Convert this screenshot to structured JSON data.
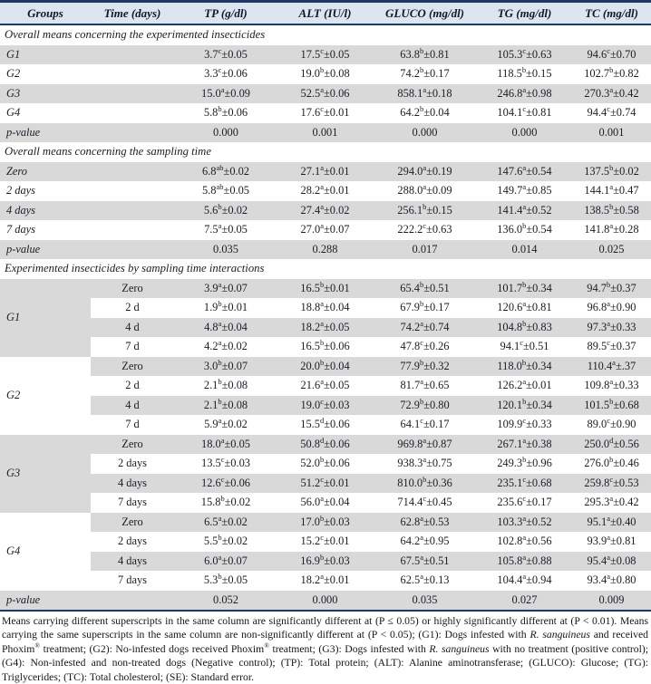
{
  "colors": {
    "border_navy": "#1c3a66",
    "header_bg": "#dde5f0",
    "row_shade": "#d9d9d9",
    "text": "#191d26"
  },
  "table": {
    "columns": [
      "Groups",
      "Time (days)",
      "TP (g/dl)",
      "ALT (IU/l)",
      "GLUCO (mg/dl)",
      "TG (mg/dl)",
      "TC (mg/dl)"
    ],
    "sections": [
      {
        "title": "Overall means concerning the experimented insecticides",
        "rows": [
          {
            "label": "G1",
            "cells": [
              "3.7^{c}±0.05",
              "17.5^{c}±0.05",
              "63.8^{b}±0.81",
              "105.3^{c}±0.63",
              "94.6^{c}±0.70"
            ]
          },
          {
            "label": "G2",
            "cells": [
              "3.3^{c}±0.06",
              "19.0^{b}±0.08",
              "74.2^{b}±0.17",
              "118.5^{b}±0.15",
              "102.7^{b}±0.82"
            ]
          },
          {
            "label": "G3",
            "cells": [
              "15.0^{a}±0.09",
              "52.5^{a}±0.06",
              "858.1^{a}±0.18",
              "246.8^{a}±0.98",
              "270.3^{a}±0.42"
            ]
          },
          {
            "label": "G4",
            "cells": [
              "5.8^{b}±0.06",
              "17.6^{c}±0.01",
              "64.2^{b}±0.04",
              "104.1^{c}±0.81",
              "94.4^{c}±0.74"
            ]
          },
          {
            "label": "p-value",
            "pvalue": true,
            "cells": [
              "0.000",
              "0.001",
              "0.000",
              "0.000",
              "0.001"
            ]
          }
        ]
      },
      {
        "title": "Overall means concerning the sampling time",
        "rows": [
          {
            "label": "Zero",
            "cells": [
              "6.8^{ab}±0.02",
              "27.1^{a}±0.01",
              "294.0^{a}±0.19",
              "147.6^{a}±0.54",
              "137.5^{b}±0.02"
            ]
          },
          {
            "label": "2 days",
            "cells": [
              "5.8^{ab}±0.05",
              "28.2^{a}±0.01",
              "288.0^{a}±0.09",
              "149.7^{a}±0.85",
              "144.1^{a}±0.47"
            ]
          },
          {
            "label": "4 days",
            "cells": [
              "5.6^{b}±0.02",
              "27.4^{a}±0.02",
              "256.1^{b}±0.15",
              "141.4^{a}±0.52",
              "138.5^{b}±0.58"
            ]
          },
          {
            "label": "7 days",
            "cells": [
              "7.5^{a}±0.05",
              "27.0^{a}±0.07",
              "222.2^{c}±0.63",
              "136.0^{b}±0.54",
              "141.8^{a}±0.28"
            ]
          },
          {
            "label": "p-value",
            "pvalue": true,
            "cells": [
              "0.035",
              "0.288",
              "0.017",
              "0.014",
              "0.025"
            ]
          }
        ]
      },
      {
        "title": "Experimented insecticides by sampling time interactions",
        "groups": [
          {
            "label": "G1",
            "rows": [
              {
                "time": "Zero",
                "cells": [
                  "3.9^{a}±0.07",
                  "16.5^{b}±0.01",
                  "65.4^{b}±0.51",
                  "101.7^{b}±0.34",
                  "94.7^{b}±0.37"
                ]
              },
              {
                "time": "2 d",
                "cells": [
                  "1.9^{b}±0.01",
                  "18.8^{a}±0.04",
                  "67.9^{b}±0.17",
                  "120.6^{a}±0.81",
                  "96.8^{a}±0.90"
                ]
              },
              {
                "time": "4 d",
                "cells": [
                  "4.8^{a}±0.04",
                  "18.2^{a}±0.05",
                  "74.2^{a}±0.74",
                  "104.8^{b}±0.83",
                  "97.3^{a}±0.33"
                ]
              },
              {
                "time": "7 d",
                "cells": [
                  "4.2^{a}±0.02",
                  "16.5^{b}±0.06",
                  "47.8^{c}±0.26",
                  "94.1^{c}±0.51",
                  "89.5^{c}±0.37"
                ]
              }
            ]
          },
          {
            "label": "G2",
            "rows": [
              {
                "time": "Zero",
                "cells": [
                  "3.0^{b}±0.07",
                  "20.0^{b}±0.04",
                  "77.9^{b}±0.32",
                  "118.0^{b}±0.34",
                  "110.4^{a}±.37"
                ]
              },
              {
                "time": "2 d",
                "cells": [
                  "2.1^{b}±0.08",
                  "21.6^{a}±0.05",
                  "81.7^{a}±0.65",
                  "126.2^{a}±0.01",
                  "109.8^{a}±0.33"
                ]
              },
              {
                "time": "4 d",
                "cells": [
                  "2.1^{b}±0.08",
                  "19.0^{c}±0.03",
                  "72.9^{b}±0.80",
                  "120.1^{b}±0.34",
                  "101.5^{b}±0.68"
                ]
              },
              {
                "time": "7 d",
                "cells": [
                  "5.9^{a}±0.02",
                  "15.5^{d}±0.06",
                  "64.1^{c}±0.17",
                  "109.9^{c}±0.33",
                  "89.0^{c}±0.90"
                ]
              }
            ]
          },
          {
            "label": "G3",
            "rows": [
              {
                "time": "Zero",
                "cells": [
                  "18.0^{a}±0.05",
                  "50.8^{d}±0.06",
                  "969.8^{a}±0.87",
                  "267.1^{a}±0.38",
                  "250.0^{d}±0.56"
                ]
              },
              {
                "time": "2 days",
                "cells": [
                  "13.5^{c}±0.03",
                  "52.0^{b}±0.06",
                  "938.3^{a}±0.75",
                  "249.3^{b}±0.96",
                  "276.0^{b}±0.46"
                ]
              },
              {
                "time": "4 days",
                "cells": [
                  "12.6^{c}±0.06",
                  "51.2^{c}±0.01",
                  "810.0^{b}±0.36",
                  "235.1^{c}±0.68",
                  "259.8^{c}±0.53"
                ]
              },
              {
                "time": "7 days",
                "cells": [
                  "15.8^{b}±0.02",
                  "56.0^{a}±0.04",
                  "714.4^{c}±0.45",
                  "235.6^{c}±0.17",
                  "295.3^{a}±0.42"
                ]
              }
            ]
          },
          {
            "label": "G4",
            "rows": [
              {
                "time": "Zero",
                "cells": [
                  "6.5^{a}±0.02",
                  "17.0^{b}±0.03",
                  "62.8^{a}±0.53",
                  "103.3^{a}±0.52",
                  "95.1^{a}±0.40"
                ]
              },
              {
                "time": "2 days",
                "cells": [
                  "5.5^{b}±0.02",
                  "15.2^{c}±0.01",
                  "64.2^{a}±0.95",
                  "102.8^{a}±0.56",
                  "93.9^{a}±0.81"
                ]
              },
              {
                "time": "4 days",
                "cells": [
                  "6.0^{a}±0.07",
                  "16.9^{b}±0.03",
                  "67.5^{a}±0.51",
                  "105.8^{a}±0.88",
                  "95.4^{a}±0.08"
                ]
              },
              {
                "time": "7 days",
                "cells": [
                  "5.3^{b}±0.05",
                  "18.2^{a}±0.01",
                  "62.5^{a}±0.13",
                  "104.4^{a}±0.94",
                  "93.4^{a}±0.80"
                ]
              }
            ]
          }
        ],
        "pvalue_row": {
          "label": "p-value",
          "cells": [
            "0.052",
            "0.000",
            "0.035",
            "0.027",
            "0.009"
          ]
        }
      }
    ]
  },
  "footnote": "Means carrying different superscripts in the same column are significantly different at (P ≤ 0.05) or highly significantly different at (P < 0.01). Means carrying the same superscripts in the same column are non-significantly different at (P < 0.05); (G1): Dogs infested with *R. sanguineus* and received Phoxim^{®} treatment; (G2): No-infested dogs received Phoxim^{®} treatment; (G3): Dogs infested with *R. sanguineus* with no treatment (positive control); (G4): Non-infested and non-treated dogs (Negative control); (TP): Total protein; (ALT): Alanine aminotransferase; (GLUCO): Glucose; (TG): Triglycerides; (TC): Total cholesterol; (SE): Standard error."
}
